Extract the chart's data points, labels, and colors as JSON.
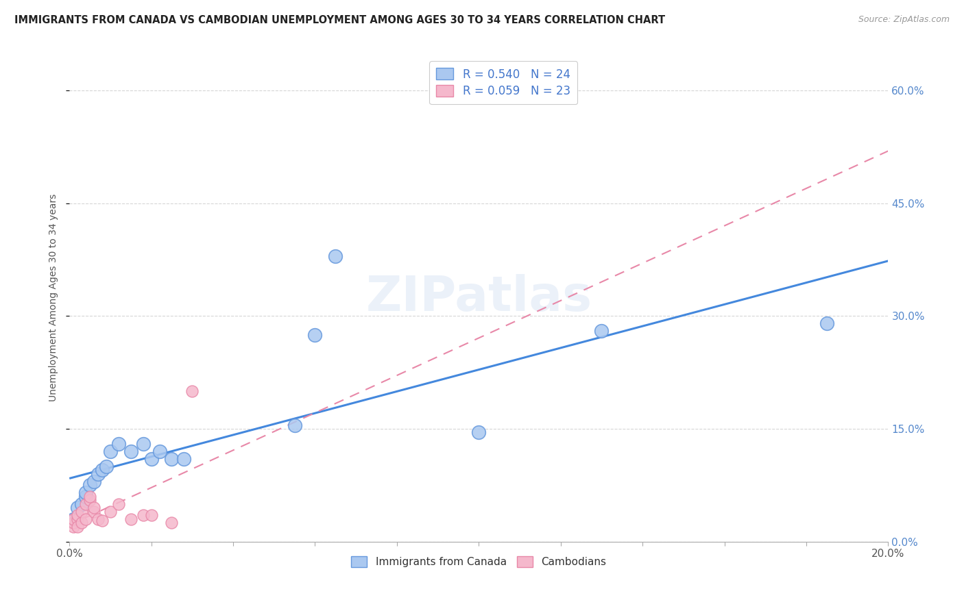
{
  "title": "IMMIGRANTS FROM CANADA VS CAMBODIAN UNEMPLOYMENT AMONG AGES 30 TO 34 YEARS CORRELATION CHART",
  "source": "Source: ZipAtlas.com",
  "ylabel": "Unemployment Among Ages 30 to 34 years",
  "watermark": "ZIPatlas",
  "canada_x": [
    0.001,
    0.002,
    0.003,
    0.004,
    0.004,
    0.005,
    0.006,
    0.007,
    0.008,
    0.009,
    0.01,
    0.012,
    0.015,
    0.018,
    0.02,
    0.022,
    0.025,
    0.028,
    0.055,
    0.06,
    0.065,
    0.1,
    0.13,
    0.185
  ],
  "canada_y": [
    0.03,
    0.045,
    0.05,
    0.06,
    0.065,
    0.075,
    0.08,
    0.09,
    0.095,
    0.1,
    0.12,
    0.13,
    0.12,
    0.13,
    0.11,
    0.12,
    0.11,
    0.11,
    0.155,
    0.275,
    0.38,
    0.145,
    0.28,
    0.29
  ],
  "cambodian_x": [
    0.001,
    0.001,
    0.001,
    0.002,
    0.002,
    0.002,
    0.003,
    0.003,
    0.004,
    0.004,
    0.005,
    0.005,
    0.006,
    0.006,
    0.007,
    0.008,
    0.01,
    0.012,
    0.015,
    0.018,
    0.02,
    0.025,
    0.03
  ],
  "cambodian_y": [
    0.02,
    0.025,
    0.03,
    0.03,
    0.035,
    0.02,
    0.025,
    0.04,
    0.03,
    0.05,
    0.055,
    0.06,
    0.04,
    0.045,
    0.03,
    0.028,
    0.04,
    0.05,
    0.03,
    0.035,
    0.035,
    0.025,
    0.2
  ],
  "canada_color": "#aac8f0",
  "cambodian_color": "#f5b8cc",
  "canada_edge_color": "#6699dd",
  "cambodian_edge_color": "#e888a8",
  "canada_line_color": "#4488dd",
  "cambodian_line_color": "#e888a8",
  "xlim": [
    0.0,
    0.2
  ],
  "ylim": [
    0.0,
    0.65
  ],
  "yticks": [
    0.0,
    0.15,
    0.3,
    0.45,
    0.6
  ],
  "xtick_minor_count": 10,
  "canada_R": 0.54,
  "cambodian_R": 0.059,
  "canada_N": 24,
  "cambodian_N": 23
}
